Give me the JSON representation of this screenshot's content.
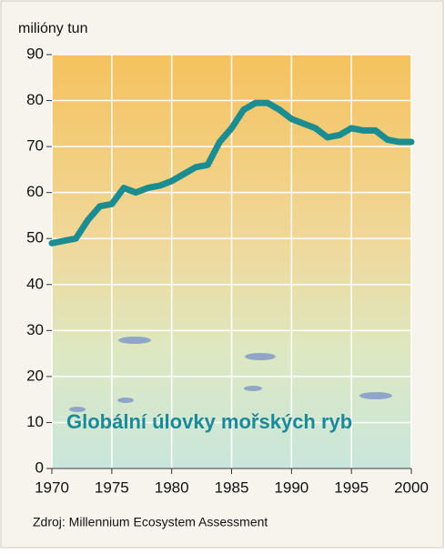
{
  "chart_data": {
    "type": "line",
    "y_label": "milióny tun",
    "annotation": "Globální úlovky mořských ryb",
    "source": "Zdroj: Millennium Ecosystem Assessment",
    "x": [
      1970,
      1971,
      1972,
      1973,
      1974,
      1975,
      1976,
      1977,
      1978,
      1979,
      1980,
      1981,
      1982,
      1983,
      1984,
      1985,
      1986,
      1987,
      1988,
      1989,
      1990,
      1991,
      1992,
      1993,
      1994,
      1995,
      1996,
      1997,
      1998,
      1999,
      2000
    ],
    "series": [
      {
        "color": "#1b8c8f",
        "values": [
          49,
          49.5,
          50,
          54,
          57,
          57.5,
          61,
          60,
          61,
          61.5,
          62.5,
          64,
          65.5,
          66,
          71,
          74,
          78,
          79.5,
          79.5,
          78,
          76,
          75,
          74,
          72,
          72.5,
          74,
          73.5,
          73.5,
          71.5,
          71,
          71
        ]
      }
    ],
    "xlim": [
      1970,
      2000
    ],
    "xticks": [
      1970,
      1975,
      1980,
      1985,
      1990,
      1995,
      2000
    ],
    "ylim": [
      0,
      90
    ],
    "yticks": [
      0,
      10,
      20,
      30,
      40,
      50,
      60,
      70,
      80,
      90
    ],
    "grid": true
  }
}
